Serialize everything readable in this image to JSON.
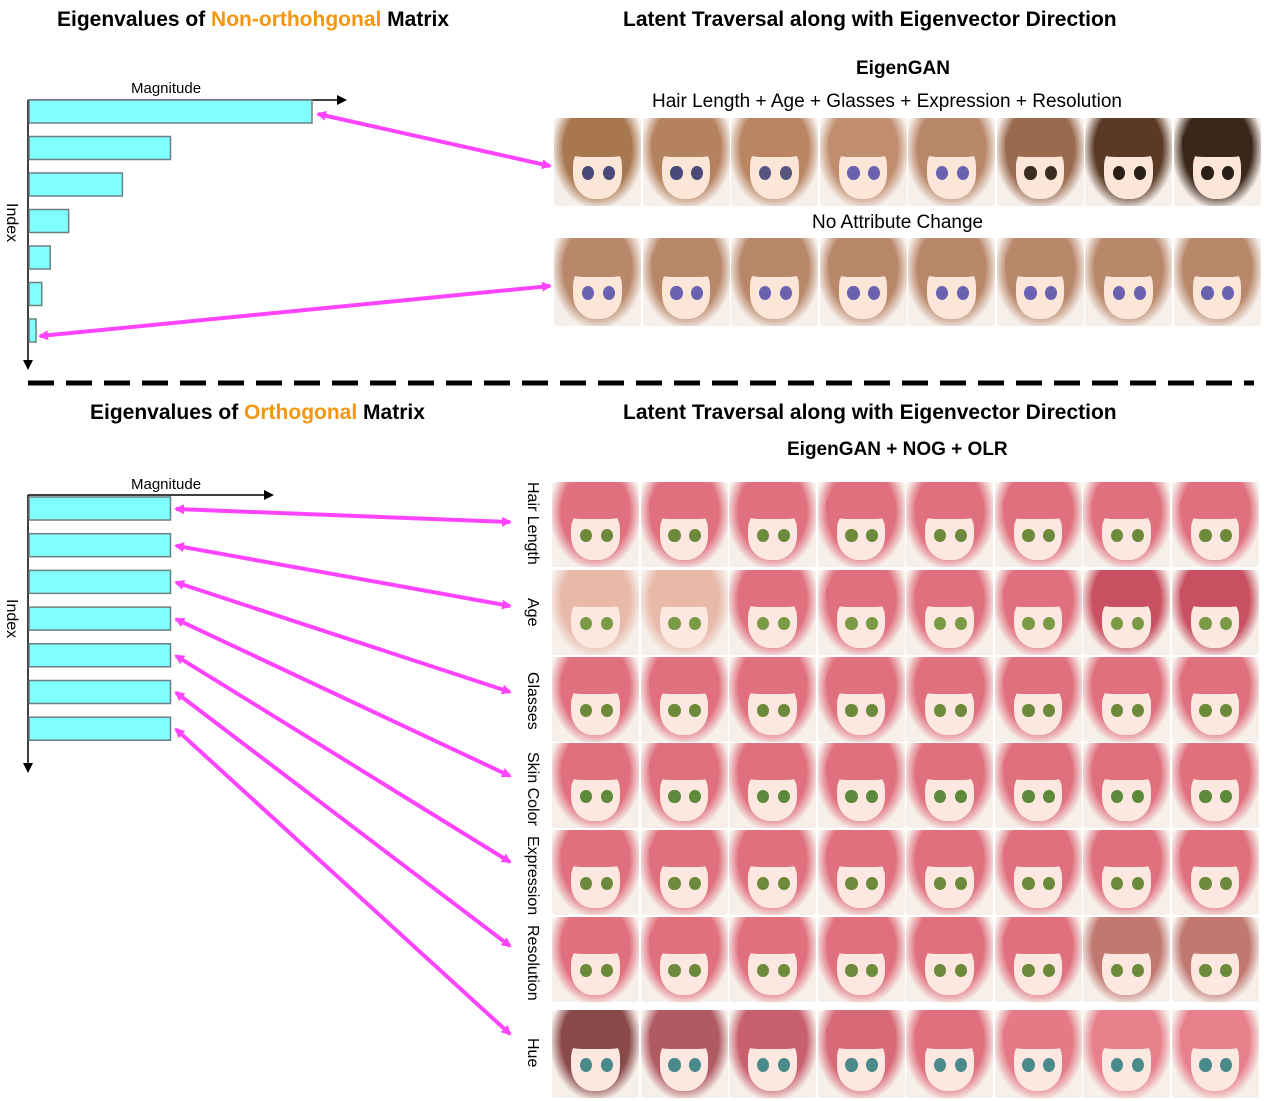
{
  "top": {
    "left_title_pre": "Eigenvalues of ",
    "left_title_hl": "Non-orthohgonal",
    "left_title_post": " Matrix",
    "right_title": "Latent Traversal along with Eigenvector Direction",
    "model": "EigenGAN",
    "row1_caption": "Hair Length + Age + Glasses + Expression + Resolution",
    "row2_caption": "No Attribute Change",
    "axis_x": "Magnitude",
    "axis_y": "Index"
  },
  "bottom": {
    "left_title_pre": "Eigenvalues of ",
    "left_title_hl": "Orthogonal",
    "left_title_post": " Matrix",
    "right_title": "Latent Traversal along with Eigenvector Direction",
    "model": "EigenGAN + NOG + OLR",
    "axis_x": "Magnitude",
    "axis_y": "Index",
    "row_labels": [
      "Hair Length",
      "Age",
      "Glasses",
      "Skin Color",
      "Expression",
      "Resolution",
      "Hue"
    ]
  },
  "colors": {
    "bar_fill": "#80ffff",
    "bar_stroke": "#6e7f80",
    "arrow": "#ff44ff",
    "highlight": "#f39612",
    "hair_brown": "#b9876a",
    "hair_pink": "#e0707e"
  },
  "chart_data": [
    {
      "type": "bar",
      "orientation": "horizontal",
      "title": "Eigenvalues of Non-orthohgonal Matrix",
      "xlabel": "Magnitude",
      "ylabel": "Index",
      "values": [
        1.0,
        0.5,
        0.33,
        0.14,
        0.075,
        0.045,
        0.025
      ]
    },
    {
      "type": "bar",
      "orientation": "horizontal",
      "title": "Eigenvalues of Orthogonal Matrix",
      "xlabel": "Magnitude",
      "ylabel": "Index",
      "values": [
        0.5,
        0.5,
        0.5,
        0.5,
        0.5,
        0.5,
        0.5
      ]
    }
  ]
}
